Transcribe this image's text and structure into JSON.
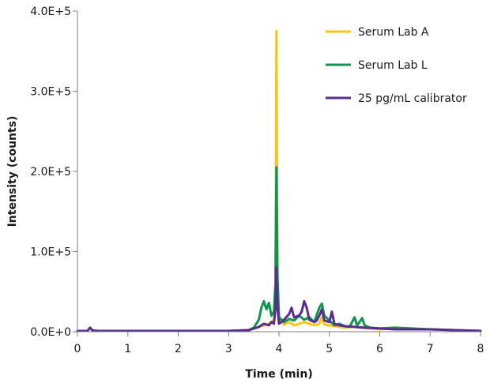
{
  "chart_data": {
    "type": "line",
    "title": "",
    "xlabel": "Time (min)",
    "ylabel": "Intensity (counts)",
    "xlim": [
      0,
      8
    ],
    "ylim": [
      0,
      400000
    ],
    "x_ticks": [
      0,
      1,
      2,
      3,
      4,
      5,
      6,
      7,
      8
    ],
    "x_tick_labels": [
      "0",
      "1",
      "2",
      "3",
      "4",
      "5",
      "6",
      "7",
      "8"
    ],
    "y_ticks": [
      0,
      100000,
      200000,
      300000,
      400000
    ],
    "y_tick_labels": [
      "0.0E+0",
      "1.0E+5",
      "2.0E+5",
      "3.0E+5",
      "4.0E+5"
    ],
    "grid": false,
    "legend_position": "top-right",
    "series": [
      {
        "name": "Serum Lab A",
        "color": "#F5C518",
        "x": [
          0,
          0.2,
          0.25,
          0.3,
          0.4,
          1.0,
          2.0,
          3.0,
          3.4,
          3.6,
          3.7,
          3.8,
          3.85,
          3.9,
          3.93,
          3.95,
          3.97,
          4.0,
          4.1,
          4.2,
          4.3,
          4.4,
          4.5,
          4.6,
          4.7,
          4.8,
          4.85,
          4.9,
          5.0,
          5.1,
          5.3,
          5.5,
          5.6,
          5.8,
          6.0,
          6.3,
          7.0,
          8.0
        ],
        "y": [
          1000,
          1000,
          5000,
          1500,
          1000,
          1000,
          1000,
          1000,
          2000,
          6000,
          8000,
          10000,
          12000,
          15000,
          40000,
          375000,
          60000,
          14000,
          9000,
          12000,
          8000,
          10000,
          12000,
          10000,
          8000,
          10000,
          18000,
          9000,
          8000,
          7000,
          5000,
          6000,
          5000,
          4000,
          3000,
          4000,
          3000,
          1000
        ]
      },
      {
        "name": "Serum Lab L",
        "color": "#0E9650",
        "x": [
          0,
          0.2,
          0.25,
          0.3,
          0.4,
          1.0,
          2.0,
          3.0,
          3.4,
          3.5,
          3.6,
          3.65,
          3.7,
          3.75,
          3.8,
          3.85,
          3.9,
          3.93,
          3.95,
          3.97,
          4.0,
          4.1,
          4.2,
          4.3,
          4.4,
          4.5,
          4.6,
          4.7,
          4.8,
          4.85,
          4.9,
          5.0,
          5.1,
          5.2,
          5.3,
          5.4,
          5.5,
          5.55,
          5.6,
          5.65,
          5.7,
          5.8,
          6.0,
          6.3,
          7.0,
          8.0
        ],
        "y": [
          1000,
          1000,
          5000,
          1500,
          1000,
          1000,
          1000,
          1000,
          2000,
          5000,
          15000,
          30000,
          38000,
          28000,
          36000,
          20000,
          25000,
          60000,
          205000,
          70000,
          18000,
          12000,
          16000,
          14000,
          20000,
          15000,
          18000,
          12000,
          30000,
          35000,
          20000,
          14000,
          8000,
          10000,
          7000,
          6000,
          18000,
          8000,
          12000,
          17000,
          8000,
          5000,
          4000,
          5000,
          3000,
          1000
        ]
      },
      {
        "name": "25 pg/mL calibrator",
        "color": "#5B2C8F",
        "x": [
          0,
          0.2,
          0.25,
          0.3,
          0.4,
          1.0,
          2.0,
          3.0,
          3.4,
          3.6,
          3.7,
          3.8,
          3.85,
          3.9,
          3.93,
          3.95,
          3.97,
          4.0,
          4.1,
          4.2,
          4.25,
          4.3,
          4.4,
          4.45,
          4.5,
          4.55,
          4.6,
          4.7,
          4.75,
          4.8,
          4.85,
          4.9,
          5.0,
          5.05,
          5.1,
          5.2,
          5.3,
          5.5,
          5.7,
          6.0,
          6.3,
          7.0,
          8.0
        ],
        "y": [
          1000,
          1000,
          5000,
          1500,
          1000,
          1000,
          1000,
          1000,
          2000,
          6000,
          10000,
          8000,
          12000,
          10000,
          30000,
          80000,
          30000,
          10000,
          15000,
          22000,
          30000,
          18000,
          20000,
          25000,
          38000,
          30000,
          15000,
          12000,
          14000,
          20000,
          28000,
          14000,
          12000,
          25000,
          10000,
          8000,
          7000,
          6000,
          5000,
          4000,
          3000,
          3000,
          1000
        ]
      }
    ]
  }
}
